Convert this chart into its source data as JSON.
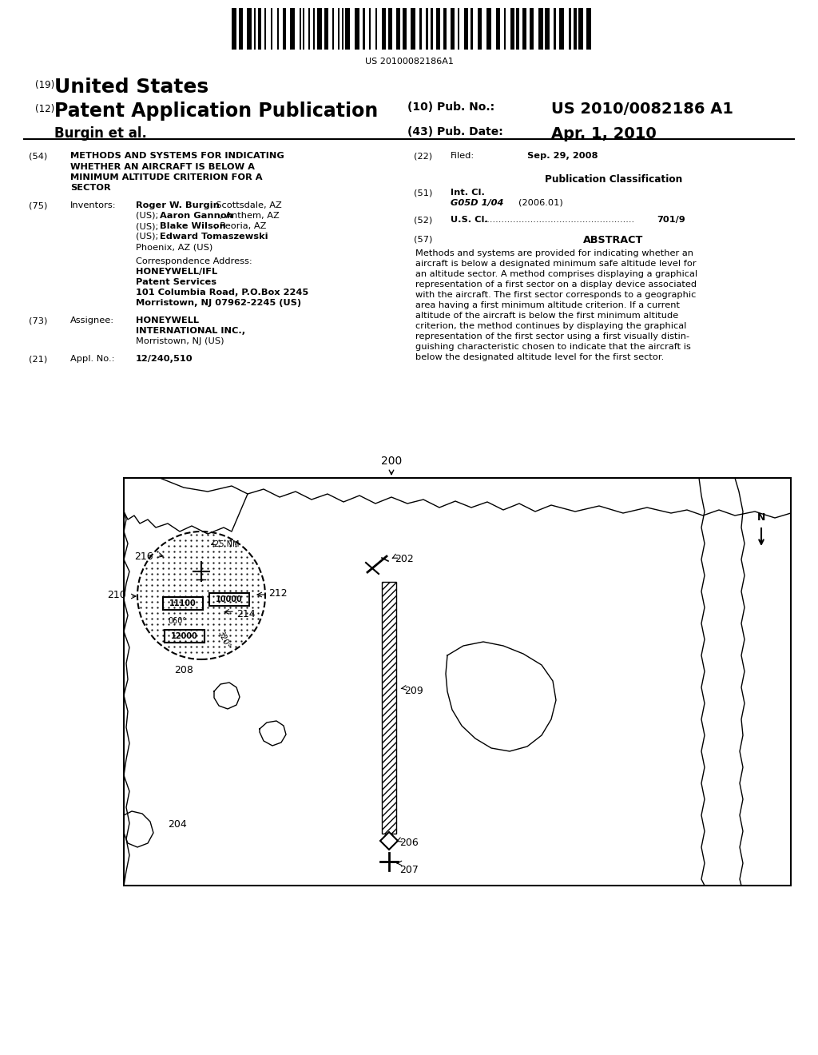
{
  "background_color": "#ffffff",
  "page_width": 10.24,
  "page_height": 13.2,
  "barcode_text": "US 20100082186A1",
  "title_19": "(19)",
  "title_country": "United States",
  "title_12": "(12)",
  "title_type": "Patent Application Publication",
  "pub_no_label": "(10) Pub. No.:",
  "pub_no": "US 2010/0082186 A1",
  "inventors_line": "Burgin et al.",
  "pub_date_label": "(43) Pub. Date:",
  "pub_date": "Apr. 1, 2010",
  "field54_label": "(54)",
  "field54_lines": [
    "METHODS AND SYSTEMS FOR INDICATING",
    "WHETHER AN AIRCRAFT IS BELOW A",
    "MINIMUM ALTITUDE CRITERION FOR A",
    "SECTOR"
  ],
  "field75_label": "(75)",
  "field75_name": "Inventors:",
  "corr_label": "Correspondence Address:",
  "corr_line1": "HONEYWELL/IFL",
  "corr_line2": "Patent Services",
  "corr_line3": "101 Columbia Road, P.O.Box 2245",
  "corr_line4": "Morristown, NJ 07962-2245 (US)",
  "field73_label": "(73)",
  "field73_name": "Assignee:",
  "field73_v1": "HONEYWELL",
  "field73_v2": "INTERNATIONAL INC.,",
  "field73_v3": "Morristown, NJ (US)",
  "field21_label": "(21)",
  "field21_name": "Appl. No.:",
  "field21_value": "12/240,510",
  "field22_label": "(22)",
  "field22_name": "Filed:",
  "field22_value": "Sep. 29, 2008",
  "pub_class_title": "Publication Classification",
  "field51_label": "(51)",
  "field51_name": "Int. Cl.",
  "field51_class": "G05D 1/04",
  "field51_year": "(2006.01)",
  "field52_label": "(52)",
  "field52_name": "U.S. Cl.",
  "field52_value": "701/9",
  "field57_label": "(57)",
  "field57_title": "ABSTRACT",
  "abstract_lines": [
    "Methods and systems are provided for indicating whether an",
    "aircraft is below a designated minimum safe altitude level for",
    "an altitude sector. A method comprises displaying a graphical",
    "representation of a first sector on a display device associated",
    "with the aircraft. The first sector corresponds to a geographic",
    "area having a first minimum altitude criterion. If a current",
    "altitude of the aircraft is below the first minimum altitude",
    "criterion, the method continues by displaying the graphical",
    "representation of the first sector using a first visually distin-",
    "guishing characteristic chosen to indicate that the aircraft is",
    "below the designated altitude level for the first sector."
  ]
}
